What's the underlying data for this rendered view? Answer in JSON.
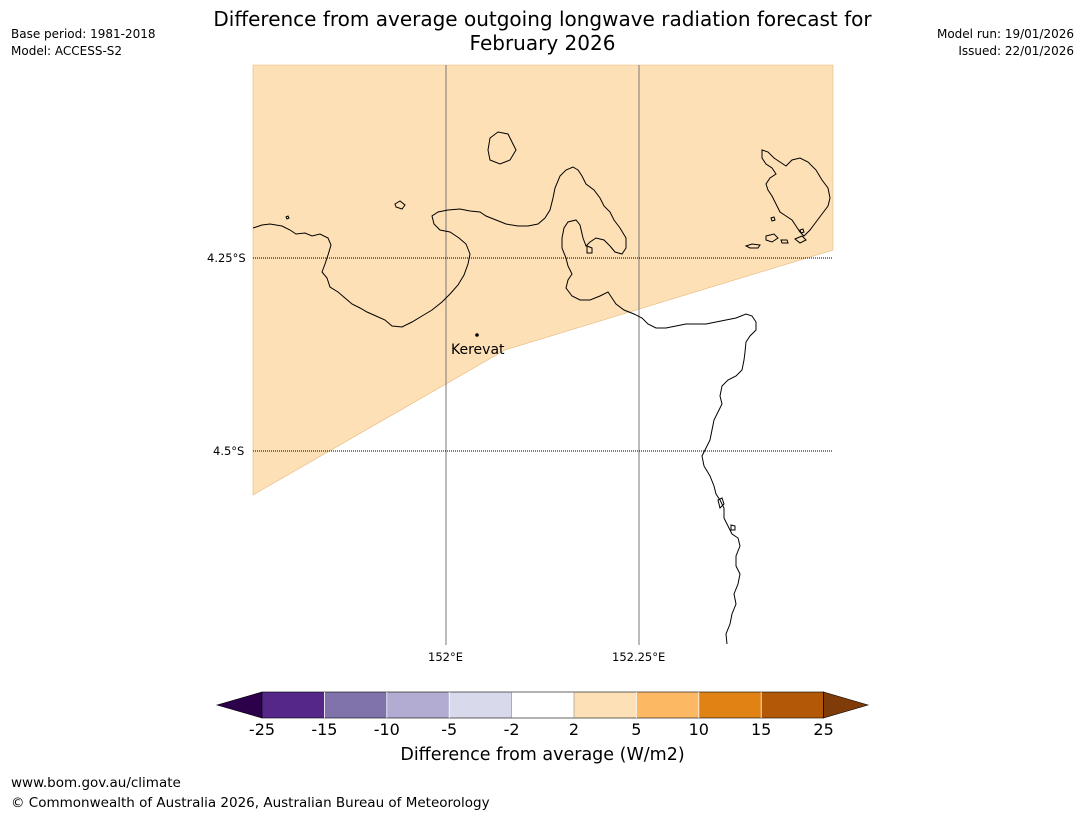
{
  "title": "Difference from average outgoing longwave radiation forecast for February 2026",
  "title_line1": "Difference from average outgoing longwave radiation forecast for",
  "title_line2": "February 2026",
  "header_left": {
    "base_period": "Base period: 1981-2018",
    "model": "Model: ACCESS-S2"
  },
  "header_right": {
    "model_run": "Model run: 19/01/2026",
    "issued": "Issued: 22/01/2026"
  },
  "map": {
    "lat_labels": [
      "4.25°S",
      "4.5°S"
    ],
    "lon_labels": [
      "152°E",
      "152.25°E"
    ],
    "place": {
      "name": "Kerevat"
    },
    "region_category": "2 to 5",
    "region_color": "#fde0b6",
    "land_outline_color": "#000000"
  },
  "colorbar": {
    "title": "Difference from average (W/m2)",
    "ticks": [
      "-25",
      "-15",
      "-10",
      "-5",
      "-2",
      "2",
      "5",
      "10",
      "15",
      "25"
    ],
    "colors": [
      "#2d004b",
      "#542788",
      "#8073ac",
      "#b2abd2",
      "#d8daeb",
      "#ffffff",
      "#fee0b6",
      "#fdb863",
      "#e08214",
      "#b35806",
      "#7f3b08"
    ]
  },
  "footer": {
    "website": "www.bom.gov.au/climate",
    "copyright": "© Commonwealth of Australia 2026, Australian Bureau of Meteorology"
  }
}
